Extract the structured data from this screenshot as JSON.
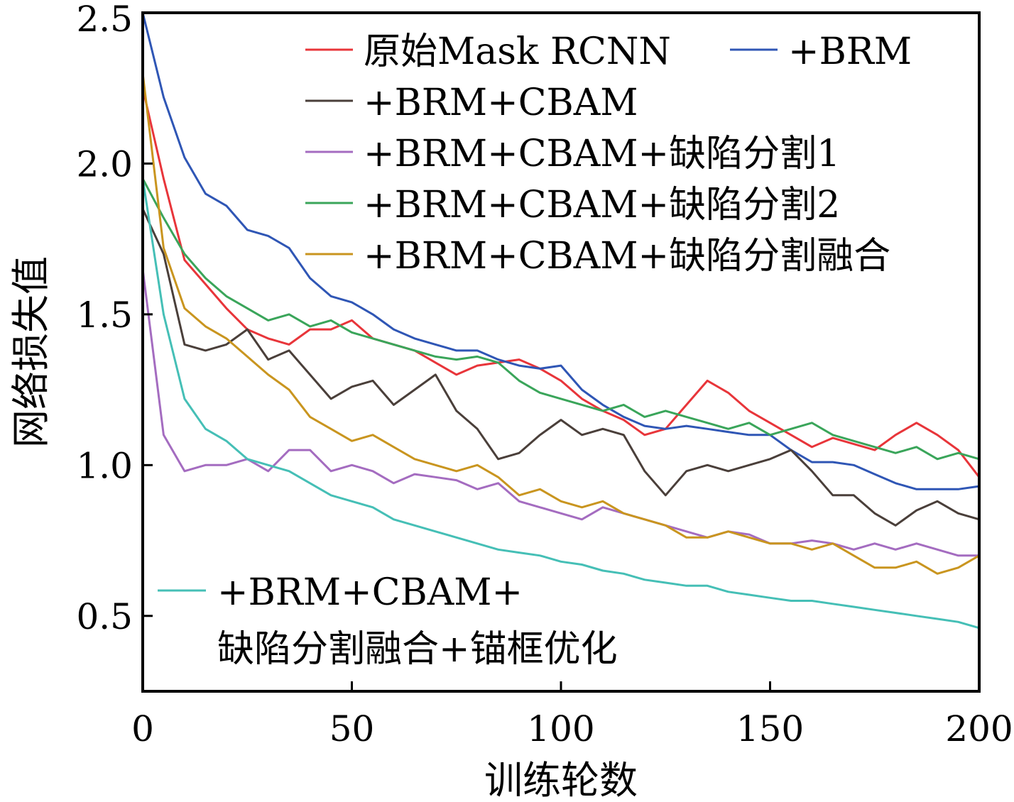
{
  "chart_data": {
    "type": "line",
    "title": "",
    "xlabel": "训练轮数",
    "ylabel": "网络损失值",
    "xlim": [
      0,
      200
    ],
    "ylim": [
      0.25,
      2.5
    ],
    "xticks": [
      "0",
      "50",
      "100",
      "150",
      "200"
    ],
    "yticks": [
      "0.5",
      "1.0",
      "1.5",
      "2.0",
      "2.5"
    ],
    "grid": false,
    "legend_position": "top-right and lower-left",
    "x": [
      0,
      5,
      10,
      15,
      20,
      25,
      30,
      35,
      40,
      45,
      50,
      55,
      60,
      65,
      70,
      75,
      80,
      85,
      90,
      95,
      100,
      105,
      110,
      115,
      120,
      125,
      130,
      135,
      140,
      145,
      150,
      155,
      160,
      165,
      170,
      175,
      180,
      185,
      190,
      195,
      200
    ],
    "series": [
      {
        "name": "原始Mask RCNN",
        "color": "#e8353a",
        "values": [
          2.25,
          1.95,
          1.68,
          1.6,
          1.52,
          1.45,
          1.42,
          1.4,
          1.45,
          1.45,
          1.48,
          1.42,
          1.4,
          1.38,
          1.34,
          1.3,
          1.33,
          1.34,
          1.35,
          1.32,
          1.28,
          1.22,
          1.18,
          1.15,
          1.1,
          1.12,
          1.2,
          1.28,
          1.24,
          1.18,
          1.14,
          1.1,
          1.06,
          1.09,
          1.07,
          1.05,
          1.1,
          1.14,
          1.1,
          1.05,
          0.96
        ]
      },
      {
        "name": "+BRM",
        "color": "#2f56b5",
        "values": [
          2.5,
          2.22,
          2.02,
          1.9,
          1.86,
          1.78,
          1.76,
          1.72,
          1.62,
          1.56,
          1.54,
          1.5,
          1.45,
          1.42,
          1.4,
          1.38,
          1.38,
          1.35,
          1.33,
          1.32,
          1.33,
          1.25,
          1.2,
          1.16,
          1.13,
          1.12,
          1.13,
          1.12,
          1.11,
          1.1,
          1.1,
          1.05,
          1.01,
          1.01,
          1.0,
          0.97,
          0.94,
          0.92,
          0.92,
          0.92,
          0.93
        ]
      },
      {
        "name": "+BRM+CBAM",
        "color": "#4a3f3a",
        "values": [
          1.85,
          1.7,
          1.4,
          1.38,
          1.4,
          1.45,
          1.35,
          1.38,
          1.3,
          1.22,
          1.26,
          1.28,
          1.2,
          1.25,
          1.3,
          1.18,
          1.12,
          1.02,
          1.04,
          1.1,
          1.15,
          1.1,
          1.12,
          1.1,
          0.98,
          0.9,
          0.98,
          1.0,
          0.98,
          1.0,
          1.02,
          1.05,
          0.98,
          0.9,
          0.9,
          0.84,
          0.8,
          0.85,
          0.88,
          0.84,
          0.82
        ]
      },
      {
        "name": "+BRM+CBAM+缺陷分割1",
        "color": "#a46cc0",
        "values": [
          1.65,
          1.1,
          0.98,
          1.0,
          1.0,
          1.02,
          0.98,
          1.05,
          1.05,
          0.98,
          1.0,
          0.98,
          0.94,
          0.97,
          0.96,
          0.95,
          0.92,
          0.94,
          0.88,
          0.86,
          0.84,
          0.82,
          0.86,
          0.84,
          0.82,
          0.8,
          0.78,
          0.76,
          0.78,
          0.77,
          0.74,
          0.74,
          0.75,
          0.74,
          0.72,
          0.74,
          0.72,
          0.74,
          0.72,
          0.7,
          0.7
        ]
      },
      {
        "name": "+BRM+CBAM+缺陷分割2",
        "color": "#3aa55a",
        "values": [
          1.95,
          1.82,
          1.7,
          1.62,
          1.56,
          1.52,
          1.48,
          1.5,
          1.46,
          1.48,
          1.44,
          1.42,
          1.4,
          1.38,
          1.36,
          1.35,
          1.36,
          1.34,
          1.28,
          1.24,
          1.22,
          1.2,
          1.18,
          1.2,
          1.16,
          1.18,
          1.16,
          1.14,
          1.12,
          1.14,
          1.1,
          1.12,
          1.14,
          1.1,
          1.08,
          1.06,
          1.04,
          1.06,
          1.02,
          1.04,
          1.02
        ]
      },
      {
        "name": "+BRM+CBAM+缺陷分割融合",
        "color": "#c9951f",
        "values": [
          2.3,
          1.72,
          1.52,
          1.46,
          1.42,
          1.36,
          1.3,
          1.25,
          1.16,
          1.12,
          1.08,
          1.1,
          1.06,
          1.02,
          1.0,
          0.98,
          1.0,
          0.96,
          0.9,
          0.92,
          0.88,
          0.86,
          0.88,
          0.84,
          0.82,
          0.8,
          0.76,
          0.76,
          0.78,
          0.76,
          0.74,
          0.74,
          0.72,
          0.74,
          0.7,
          0.66,
          0.66,
          0.68,
          0.64,
          0.66,
          0.7
        ]
      },
      {
        "name": "+BRM+CBAM+缺陷分割融合+锚框优化",
        "color": "#45bfb6",
        "values": [
          1.95,
          1.5,
          1.22,
          1.12,
          1.08,
          1.02,
          1.0,
          0.98,
          0.94,
          0.9,
          0.88,
          0.86,
          0.82,
          0.8,
          0.78,
          0.76,
          0.74,
          0.72,
          0.71,
          0.7,
          0.68,
          0.67,
          0.65,
          0.64,
          0.62,
          0.61,
          0.6,
          0.6,
          0.58,
          0.57,
          0.56,
          0.55,
          0.55,
          0.54,
          0.53,
          0.52,
          0.51,
          0.5,
          0.49,
          0.48,
          0.46
        ]
      }
    ],
    "legend": {
      "top": [
        [
          "原始Mask RCNN",
          "+BRM"
        ],
        [
          "+BRM+CBAM"
        ],
        [
          "+BRM+CBAM+缺陷分割1"
        ],
        [
          "+BRM+CBAM+缺陷分割2"
        ],
        [
          "+BRM+CBAM+缺陷分割融合"
        ]
      ],
      "bottom_line1": "+BRM+CBAM+",
      "bottom_line2": "缺陷分割融合+锚框优化"
    }
  }
}
